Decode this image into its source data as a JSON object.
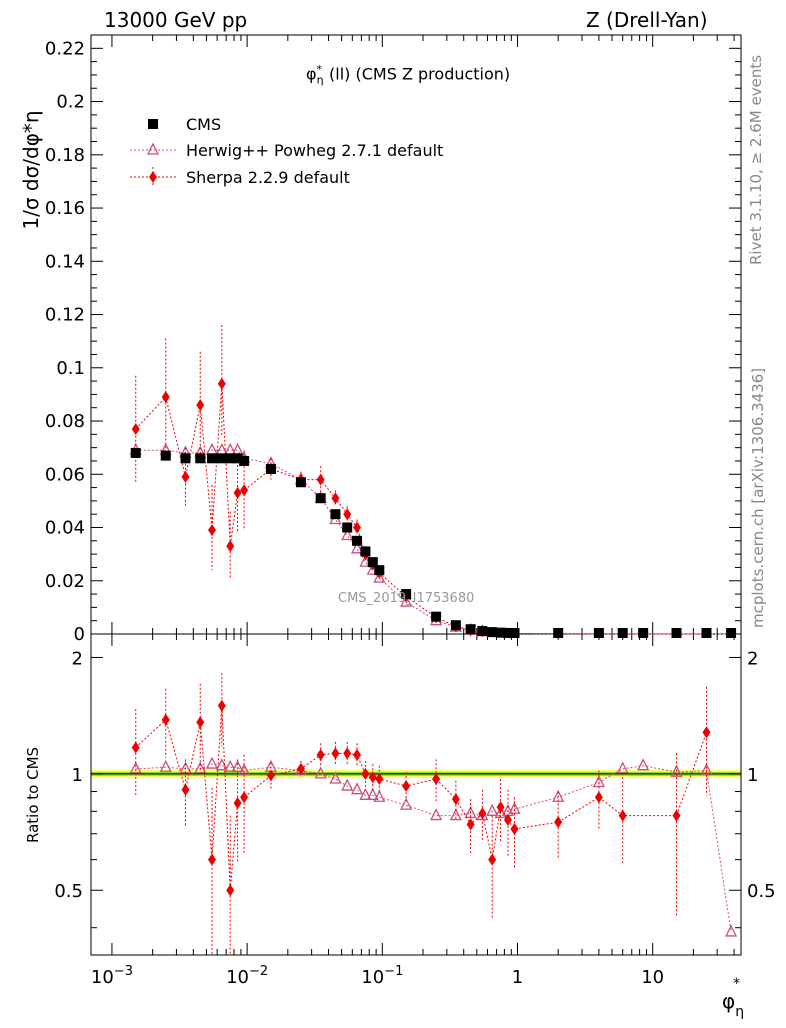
{
  "header": {
    "left": "13000 GeV pp",
    "right": "Z (Drell-Yan)"
  },
  "plot_title": {
    "main": "φ",
    "sup": "*",
    "sub": "η",
    "rest": "(ll) (CMS Z production)"
  },
  "side_text": {
    "rivet": "Rivet 3.1.10, ≥ 2.6M events",
    "mcplots": "mcplots.cern.ch [arXiv:1306.3436]"
  },
  "watermark": "CMS_2019_I1753680",
  "colors": {
    "cms": "#000000",
    "herwig": "#cc4d80",
    "sherpa": "#ee0000",
    "band_green": "#88dd33",
    "band_yellow": "#ffff66"
  },
  "chart_data": {
    "type": "scatter",
    "xscale": "log",
    "xlim": [
      0.0007,
      45
    ],
    "top_panel": {
      "ylabel": "1/σ dσ/dφ*η",
      "ylim": [
        0,
        0.225
      ],
      "yticks": [
        "0",
        "0.02",
        "0.04",
        "0.06",
        "0.08",
        "0.1",
        "0.12",
        "0.14",
        "0.16",
        "0.18",
        "0.2",
        "0.22"
      ]
    },
    "ratio_panel": {
      "ylabel": "Ratio to CMS",
      "ylim": [
        0.34,
        2.3
      ],
      "yticks": [
        "0.5",
        "1",
        "2"
      ]
    },
    "xlabel": "φ*η",
    "xticks": [
      "10−3",
      "10−2",
      "10−1",
      "1",
      "10"
    ],
    "legend": {
      "position": "top-left",
      "entries": [
        "CMS",
        "Herwig++ Powheg 2.7.1 default",
        "Sherpa 2.2.9 default"
      ]
    },
    "series": [
      {
        "name": "CMS",
        "x": [
          0.0015,
          0.0025,
          0.0035,
          0.0045,
          0.0055,
          0.0065,
          0.0075,
          0.0085,
          0.0095,
          0.015,
          0.025,
          0.035,
          0.045,
          0.055,
          0.065,
          0.075,
          0.085,
          0.095,
          0.15,
          0.25,
          0.35,
          0.45,
          0.55,
          0.65,
          0.75,
          0.85,
          0.95,
          2,
          4,
          6,
          8.5,
          15,
          25,
          38
        ],
        "y": [
          0.068,
          0.067,
          0.066,
          0.066,
          0.066,
          0.066,
          0.066,
          0.066,
          0.065,
          0.062,
          0.057,
          0.051,
          0.045,
          0.04,
          0.035,
          0.031,
          0.027,
          0.024,
          0.015,
          0.0065,
          0.0033,
          0.0018,
          0.0011,
          0.0007,
          0.0005,
          0.0004,
          0.0003,
          0.00015,
          5e-05,
          3e-05,
          2e-05,
          1e-05,
          5e-06,
          3e-06
        ]
      },
      {
        "name": "Herwig++ Powheg 2.7.1 default",
        "x": [
          0.0015,
          0.0025,
          0.0035,
          0.0045,
          0.0055,
          0.0065,
          0.0075,
          0.0085,
          0.0095,
          0.015,
          0.025,
          0.035,
          0.045,
          0.055,
          0.065,
          0.075,
          0.085,
          0.095,
          0.15,
          0.25,
          0.35,
          0.45,
          0.55,
          0.65,
          0.75,
          0.85,
          0.95,
          2,
          4,
          6,
          8.5,
          15,
          25,
          38
        ],
        "y": [
          0.069,
          0.069,
          0.068,
          0.068,
          0.069,
          0.069,
          0.069,
          0.069,
          0.066,
          0.064,
          0.058,
          0.051,
          0.043,
          0.037,
          0.032,
          0.027,
          0.024,
          0.021,
          0.012,
          0.005,
          0.0026,
          0.0014,
          0.0009,
          0.0006,
          0.0004,
          0.0003,
          0.0002,
          0.00013,
          5e-05,
          3e-05,
          2e-05,
          1e-05,
          5e-06,
          1e-06
        ],
        "ratio": [
          1.03,
          1.04,
          1.03,
          1.03,
          1.06,
          1.05,
          1.04,
          1.04,
          1.02,
          1.04,
          1.02,
          1.0,
          0.97,
          0.93,
          0.91,
          0.88,
          0.88,
          0.87,
          0.83,
          0.78,
          0.78,
          0.79,
          0.78,
          0.8,
          0.79,
          0.8,
          0.81,
          0.87,
          0.95,
          1.03,
          1.05,
          1.01,
          1.02,
          0.39
        ]
      },
      {
        "name": "Sherpa 2.2.9 default",
        "x": [
          0.0015,
          0.0025,
          0.0035,
          0.0045,
          0.0055,
          0.0065,
          0.0075,
          0.0085,
          0.0095,
          0.015,
          0.025,
          0.035,
          0.045,
          0.055,
          0.065,
          0.075,
          0.085,
          0.095,
          0.15,
          0.25,
          0.35,
          0.45,
          0.55,
          0.65,
          0.75,
          0.85,
          0.95,
          2,
          4,
          6,
          15,
          25
        ],
        "y": [
          0.077,
          0.089,
          0.059,
          0.086,
          0.039,
          0.094,
          0.033,
          0.053,
          0.054,
          0.062,
          0.058,
          0.058,
          0.051,
          0.045,
          0.04,
          0.03,
          0.026,
          0.023,
          0.014,
          0.0063,
          0.0029,
          0.0014,
          0.0011,
          0.0004,
          0.0005,
          0.0004,
          0.0002,
          0.0001,
          4e-05,
          2e-05,
          8e-06,
          6e-06
        ],
        "ratio": [
          1.17,
          1.38,
          0.91,
          1.36,
          0.6,
          1.5,
          0.5,
          0.84,
          0.87,
          0.99,
          1.03,
          1.12,
          1.13,
          1.13,
          1.12,
          1.0,
          0.98,
          0.97,
          0.93,
          0.97,
          0.86,
          0.74,
          0.79,
          0.6,
          0.82,
          0.76,
          0.72,
          0.75,
          0.87,
          0.78,
          0.78,
          1.28
        ],
        "err_lo": [
          0.02,
          0.02,
          0.011,
          0.02,
          0.015,
          0.02,
          0.012,
          0.015,
          0.015,
          0.004,
          0.003,
          0.005,
          0.003,
          0.003,
          0.003,
          0.003,
          0.002,
          0.002,
          0.001,
          0.0005,
          0.0003,
          0.0002,
          0.0002,
          0.0001,
          0.0001,
          0.0001,
          0.0001,
          3e-05,
          2e-05,
          1e-05,
          5e-06,
          3e-06
        ],
        "err_hi": [
          0.02,
          0.022,
          0.011,
          0.02,
          0.017,
          0.022,
          0.013,
          0.015,
          0.015,
          0.004,
          0.003,
          0.005,
          0.003,
          0.003,
          0.003,
          0.003,
          0.002,
          0.002,
          0.001,
          0.0005,
          0.0003,
          0.0002,
          0.0002,
          0.0001,
          0.0001,
          0.0001,
          0.0001,
          3e-05,
          2e-05,
          1e-05,
          5e-06,
          3e-06
        ],
        "ratio_err_lo": [
          0.3,
          0.28,
          0.18,
          0.35,
          0.32,
          0.32,
          0.28,
          0.25,
          0.25,
          0.08,
          0.05,
          0.08,
          0.08,
          0.08,
          0.08,
          0.08,
          0.08,
          0.08,
          0.08,
          0.12,
          0.1,
          0.12,
          0.12,
          0.18,
          0.15,
          0.15,
          0.15,
          0.15,
          0.15,
          0.2,
          0.35,
          0.4
        ],
        "ratio_err_hi": [
          0.3,
          0.28,
          0.18,
          0.35,
          0.32,
          0.32,
          0.28,
          0.25,
          0.25,
          0.08,
          0.05,
          0.08,
          0.08,
          0.08,
          0.08,
          0.08,
          0.08,
          0.08,
          0.08,
          0.12,
          0.1,
          0.12,
          0.12,
          0.18,
          0.15,
          0.15,
          0.15,
          0.15,
          0.15,
          0.2,
          0.35,
          0.4
        ]
      }
    ]
  }
}
